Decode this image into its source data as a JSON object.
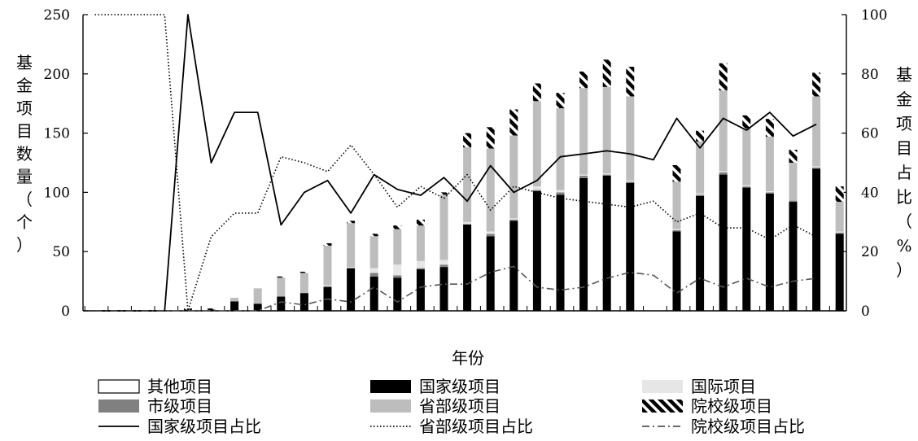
{
  "chart_data": {
    "type": "bar",
    "xlabel": "年份",
    "ylabel_left": "基金项目数量（个）",
    "ylabel_right": "基金项目占比（%）",
    "ylim_left": [
      0,
      250
    ],
    "ylim_right": [
      0,
      100
    ],
    "yticks_left": [
      "0",
      "50",
      "100",
      "150",
      "200",
      "250"
    ],
    "yticks_right": [
      "0",
      "20",
      "40",
      "60",
      "80",
      "100"
    ],
    "stack_order": [
      "national",
      "municipal",
      "international",
      "provincial",
      "school",
      "other"
    ],
    "series": [
      {
        "key": "other",
        "name": "其他项目",
        "kind": "bar",
        "color": "#ffffff",
        "values": [
          0,
          0,
          0,
          0,
          0,
          0,
          0,
          0,
          0,
          0,
          0,
          0,
          0,
          0,
          0,
          0,
          0,
          0,
          0,
          0,
          0,
          0,
          0,
          0,
          0,
          0,
          0,
          0,
          0,
          0,
          0,
          0,
          0
        ]
      },
      {
        "key": "national",
        "name": "国家级项目",
        "kind": "bar",
        "color": "#000000",
        "values": [
          0,
          0,
          0,
          0,
          1,
          1,
          8,
          6,
          12,
          15,
          20,
          36,
          29,
          28,
          35,
          37,
          73,
          63,
          76,
          101,
          98,
          112,
          114,
          108,
          0,
          67,
          97,
          115,
          104,
          99,
          92,
          120,
          65
        ]
      },
      {
        "key": "international",
        "name": "国际项目",
        "kind": "bar",
        "color": "#e6e6e6",
        "values": [
          0,
          0,
          0,
          0,
          0,
          0,
          0,
          0,
          0,
          0,
          1,
          1,
          4,
          9,
          6,
          4,
          2,
          2,
          1,
          3,
          2,
          1,
          1,
          1,
          0,
          1,
          1,
          1,
          1,
          1,
          0,
          1,
          1
        ]
      },
      {
        "key": "municipal",
        "name": "市级项目",
        "kind": "bar",
        "color": "#808080",
        "values": [
          0,
          0,
          0,
          0,
          0,
          0,
          0,
          0,
          0,
          0,
          1,
          0,
          3,
          2,
          1,
          2,
          0,
          2,
          1,
          1,
          2,
          2,
          1,
          1,
          0,
          1,
          1,
          2,
          1,
          1,
          1,
          1,
          1
        ]
      },
      {
        "key": "provincial",
        "name": "省部级项目",
        "kind": "bar",
        "color": "#bdbdbd",
        "values": [
          0,
          0,
          0,
          0,
          0,
          0,
          3,
          13,
          16,
          17,
          33,
          37,
          27,
          30,
          30,
          55,
          63,
          70,
          70,
          72,
          69,
          73,
          73,
          71,
          0,
          40,
          44,
          68,
          48,
          46,
          32,
          59,
          25
        ]
      },
      {
        "key": "school",
        "name": "院校级项目",
        "kind": "bar",
        "color": "#000000",
        "pattern": "hatch",
        "values": [
          0,
          0,
          0,
          0,
          1,
          1,
          0,
          0,
          1,
          1,
          2,
          2,
          2,
          3,
          5,
          2,
          12,
          18,
          22,
          15,
          13,
          14,
          23,
          25,
          0,
          14,
          9,
          23,
          11,
          15,
          11,
          20,
          13
        ]
      },
      {
        "key": "national_pct",
        "name": "国家级项目占比",
        "kind": "line",
        "style": "solid",
        "color": "#000000",
        "values": [
          0,
          0,
          0,
          0,
          100,
          50,
          67,
          67,
          29,
          40,
          44,
          33,
          46,
          41,
          39,
          45,
          37,
          49,
          40,
          44,
          52,
          53,
          54,
          53,
          51,
          65,
          55,
          65,
          61,
          67,
          59,
          63,
          null
        ]
      },
      {
        "key": "provincial_pct",
        "name": "省部级项目占比",
        "kind": "line",
        "style": "dotted",
        "color": "#000000",
        "values": [
          100,
          100,
          100,
          100,
          0,
          25,
          33,
          33,
          52,
          50,
          47,
          56,
          46,
          35,
          42,
          38,
          46,
          34,
          42,
          40,
          38,
          37,
          36,
          35,
          37,
          30,
          33,
          28,
          28,
          24,
          29,
          25,
          null
        ]
      },
      {
        "key": "school_pct",
        "name": "院校级项目占比",
        "kind": "line",
        "style": "dashdot",
        "color": "#555555",
        "values": [
          0,
          0,
          0,
          0,
          0,
          0,
          0,
          0,
          3,
          2,
          4,
          3,
          8,
          3,
          8,
          9,
          9,
          13,
          15,
          8,
          7,
          8,
          11,
          13,
          12,
          6,
          11,
          8,
          11,
          8,
          10,
          11,
          null
        ]
      }
    ],
    "legend_position": "bottom",
    "grid": false
  }
}
